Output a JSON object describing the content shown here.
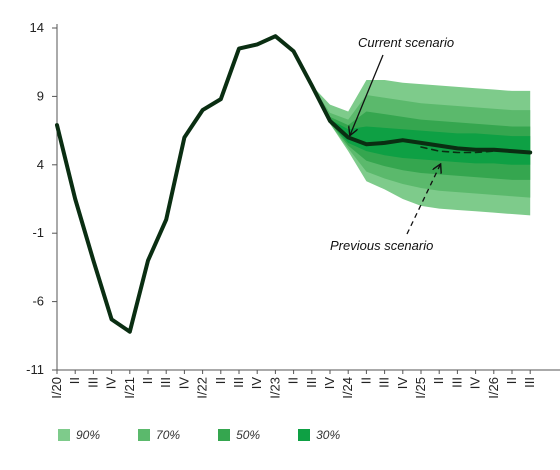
{
  "chart_data": {
    "type": "fan",
    "title": "",
    "xlabel": "",
    "ylabel": "",
    "ylim": [
      -11,
      14
    ],
    "yticks": [
      14,
      9,
      4,
      -1,
      -6,
      -11
    ],
    "grid": false,
    "categories": [
      "I/20",
      "II",
      "III",
      "IV",
      "I/21",
      "II",
      "III",
      "IV",
      "I/22",
      "II",
      "III",
      "IV",
      "I/23",
      "II",
      "III",
      "IV",
      "I/24",
      "II",
      "III",
      "IV",
      "I/25",
      "II",
      "III",
      "IV",
      "I/26",
      "II",
      "III"
    ],
    "series": [
      {
        "name": "Current scenario",
        "color": "#0a2e12",
        "values": [
          6.9,
          1.5,
          -3.0,
          -7.3,
          -8.2,
          -3.0,
          0.0,
          6.0,
          8.0,
          8.8,
          12.5,
          12.8,
          13.4,
          12.3,
          9.8,
          7.2,
          6.0,
          5.5,
          5.6,
          5.8,
          5.6,
          5.4,
          5.2,
          5.1,
          5.1,
          5.0,
          4.9
        ]
      },
      {
        "name": "Previous scenario",
        "color": "#0a2e12",
        "dashed": true,
        "values": [
          null,
          null,
          null,
          null,
          null,
          null,
          null,
          null,
          null,
          null,
          null,
          null,
          null,
          null,
          null,
          null,
          null,
          null,
          null,
          null,
          5.3,
          5.0,
          4.9,
          4.9,
          5.0,
          null,
          null
        ]
      }
    ],
    "fan": {
      "start_index": 14,
      "bands": [
        {
          "name": "90%",
          "color": "#7ecb8b",
          "lower": [
            9.8,
            7.0,
            5.0,
            2.8,
            2.2,
            1.5,
            1.0,
            0.8,
            0.7,
            0.6,
            0.5,
            0.4,
            0.3
          ],
          "upper": [
            9.8,
            8.4,
            7.9,
            10.2,
            10.2,
            10.0,
            9.9,
            9.8,
            9.7,
            9.6,
            9.5,
            9.4,
            9.4
          ]
        },
        {
          "name": "70%",
          "color": "#5bb96c",
          "lower": [
            9.8,
            7.0,
            5.2,
            3.5,
            3.0,
            2.6,
            2.3,
            2.1,
            2.0,
            1.9,
            1.8,
            1.7,
            1.6
          ],
          "upper": [
            9.8,
            7.8,
            7.3,
            9.1,
            8.9,
            8.7,
            8.5,
            8.4,
            8.3,
            8.2,
            8.1,
            8.0,
            8.0
          ]
        },
        {
          "name": "50%",
          "color": "#35a64f",
          "lower": [
            9.8,
            7.1,
            5.4,
            4.3,
            3.9,
            3.6,
            3.4,
            3.3,
            3.2,
            3.1,
            3.0,
            2.9,
            2.9
          ],
          "upper": [
            9.8,
            7.5,
            6.9,
            7.9,
            7.7,
            7.5,
            7.3,
            7.2,
            7.1,
            7.0,
            6.9,
            6.8,
            6.8
          ]
        },
        {
          "name": "30%",
          "color": "#0ea044",
          "lower": [
            9.8,
            7.1,
            5.6,
            5.0,
            4.7,
            4.5,
            4.4,
            4.3,
            4.2,
            4.1,
            4.1,
            4.0,
            4.0
          ],
          "upper": [
            9.8,
            7.3,
            6.6,
            6.8,
            6.7,
            6.6,
            6.5,
            6.4,
            6.3,
            6.3,
            6.2,
            6.1,
            6.1
          ]
        }
      ]
    },
    "annotations": [
      {
        "text": "Current scenario",
        "series": "Current scenario"
      },
      {
        "text": "Previous scenario",
        "series": "Previous scenario"
      }
    ],
    "legend": {
      "placement": "bottom",
      "items": [
        "90%",
        "70%",
        "50%",
        "30%"
      ]
    }
  }
}
